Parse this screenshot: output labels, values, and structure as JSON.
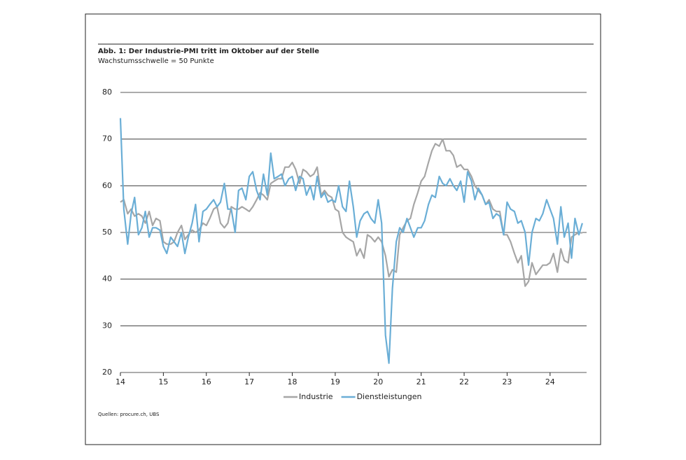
{
  "chart_data": {
    "type": "line",
    "title": "Abb. 1: Der Industrie-PMI tritt im Oktober auf der Stelle",
    "subtitle": "Wachstumsschwelle = 50 Punkte",
    "source": "Quellen: procure.ch, UBS",
    "x": [
      14,
      14.08,
      14.17,
      14.25,
      14.33,
      14.42,
      14.5,
      14.58,
      14.67,
      14.75,
      14.83,
      14.92,
      15,
      15.08,
      15.17,
      15.25,
      15.33,
      15.42,
      15.5,
      15.58,
      15.67,
      15.75,
      15.83,
      15.92,
      16,
      16.08,
      16.17,
      16.25,
      16.33,
      16.42,
      16.5,
      16.58,
      16.67,
      16.75,
      16.83,
      16.92,
      17,
      17.08,
      17.17,
      17.25,
      17.33,
      17.42,
      17.5,
      17.58,
      17.67,
      17.75,
      17.83,
      17.92,
      18,
      18.08,
      18.17,
      18.25,
      18.33,
      18.42,
      18.5,
      18.58,
      18.67,
      18.75,
      18.83,
      18.92,
      19,
      19.08,
      19.17,
      19.25,
      19.33,
      19.42,
      19.5,
      19.58,
      19.67,
      19.75,
      19.83,
      19.92,
      20,
      20.08,
      20.17,
      20.25,
      20.33,
      20.42,
      20.5,
      20.58,
      20.67,
      20.75,
      20.83,
      20.92,
      21,
      21.08,
      21.17,
      21.25,
      21.33,
      21.42,
      21.5,
      21.58,
      21.67,
      21.75,
      21.83,
      21.92,
      22,
      22.08,
      22.17,
      22.25,
      22.33,
      22.42,
      22.5,
      22.58,
      22.67,
      22.75,
      22.83,
      22.92,
      23,
      23.08,
      23.17,
      23.25,
      23.33,
      23.42,
      23.5,
      23.58,
      23.67,
      23.75,
      23.83,
      23.92,
      24,
      24.08,
      24.17,
      24.25,
      24.33,
      24.42,
      24.5,
      24.58,
      24.67,
      24.75
    ],
    "series": [
      {
        "name": "Industrie",
        "color": "#a6a6a6",
        "values": [
          56.5,
          57,
          54,
          55,
          53.5,
          54,
          53.5,
          52,
          54.5,
          51.5,
          53,
          52.5,
          48,
          47.5,
          47.5,
          48,
          50,
          51.5,
          48.5,
          49.5,
          50.5,
          50,
          50.5,
          52,
          51.5,
          53,
          55,
          55.5,
          52,
          51,
          52,
          55.5,
          55,
          55,
          55.5,
          55,
          54.5,
          55.5,
          57,
          58.5,
          58,
          57,
          60.5,
          61,
          61.5,
          61.5,
          64,
          64,
          65,
          63.5,
          60.5,
          63.5,
          63,
          62,
          62.5,
          64,
          58,
          59,
          58,
          57.5,
          55,
          54.5,
          50,
          49,
          48.5,
          48,
          45,
          46.5,
          44.5,
          49.5,
          49,
          48,
          49,
          48,
          45,
          40.5,
          42,
          41.5,
          49.5,
          51,
          52.5,
          53,
          56,
          58.5,
          61,
          62,
          65,
          67.5,
          69,
          68.5,
          70,
          67.5,
          67.5,
          66.5,
          64,
          64.5,
          63.5,
          63.5,
          62,
          60,
          59,
          58,
          56,
          57,
          55,
          54.5,
          54.5,
          49.5,
          49.5,
          48,
          45.5,
          43.5,
          45,
          38.5,
          39.5,
          43.5,
          41,
          42,
          43,
          43,
          43.5,
          45.5,
          41.5,
          46.5,
          44,
          43.5,
          49,
          49.5,
          50,
          49.9
        ]
      },
      {
        "name": "Dienstleistungen",
        "color": "#6aaed6",
        "values": [
          74.5,
          55,
          47.5,
          54,
          57.5,
          49.5,
          51,
          54.5,
          49,
          51,
          51,
          50.5,
          47,
          45.5,
          49,
          48,
          47,
          50,
          45.5,
          49,
          52,
          56,
          48,
          54.5,
          55,
          56,
          57,
          55.5,
          56.5,
          60.5,
          55,
          55,
          50,
          59,
          59.5,
          57,
          62,
          63,
          59,
          57,
          62.5,
          58,
          67,
          61.5,
          62,
          62.5,
          60,
          61.5,
          62,
          59,
          62,
          61.5,
          58,
          60,
          57,
          62,
          57.5,
          58.5,
          56.5,
          57,
          56.5,
          60,
          55.5,
          54.5,
          61,
          55.5,
          49,
          52.5,
          54,
          54.5,
          53,
          52,
          57,
          52,
          28,
          22,
          38,
          48,
          51,
          50,
          53,
          51,
          49,
          51,
          51,
          52.5,
          56,
          58,
          57.5,
          62,
          60.5,
          60,
          61.5,
          60,
          59,
          61,
          56.5,
          63,
          61,
          57,
          59.5,
          58,
          56,
          56.5,
          53,
          54,
          53.5,
          49.5,
          56.5,
          55,
          54.5,
          52,
          52.5,
          50,
          43,
          50,
          53,
          52.5,
          54,
          57,
          55,
          53,
          47.5,
          55.5,
          49,
          52,
          44.5,
          53,
          49.5,
          52
        ]
      }
    ],
    "xlim": [
      14,
      24.85
    ],
    "xticks": [
      14,
      15,
      16,
      17,
      18,
      19,
      20,
      21,
      22,
      23,
      24
    ],
    "ylim": [
      20,
      80
    ],
    "yticks": [
      20,
      30,
      40,
      50,
      60,
      70,
      80
    ],
    "grid": true
  }
}
